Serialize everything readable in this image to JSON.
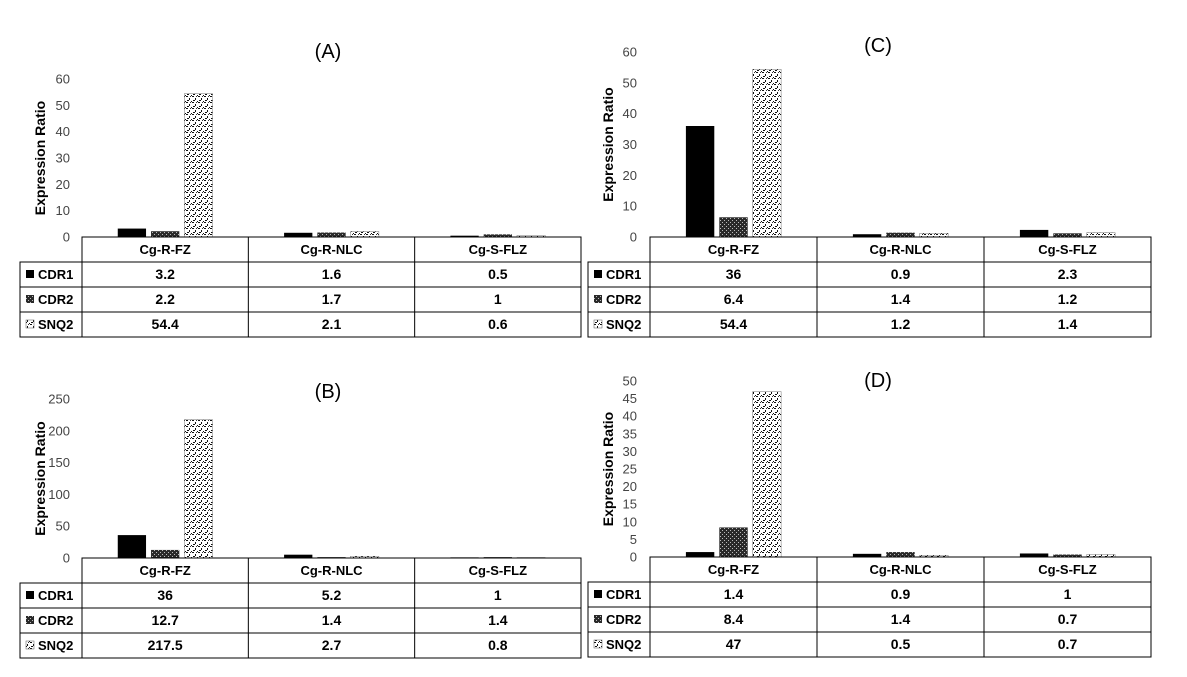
{
  "colors": {
    "CDR1": "#000000",
    "CDR2": "#333333",
    "SNQ2": "#eeeeee",
    "axis": "#444444",
    "grid": "#000000"
  },
  "chart_data": [
    {
      "type": "bar",
      "title": "(A)",
      "ylabel": "Expression Ratio",
      "ylim": [
        0,
        60
      ],
      "yticks": [
        0,
        10,
        20,
        30,
        40,
        50,
        60
      ],
      "categories": [
        "Cg-R-FZ",
        "Cg-R-NLC",
        "Cg-S-FLZ"
      ],
      "series": [
        {
          "name": "CDR1",
          "values": [
            3.2,
            1.6,
            0.5
          ],
          "labels": [
            "3.2",
            "1.6",
            "0.5"
          ]
        },
        {
          "name": "CDR2",
          "values": [
            2.2,
            1.7,
            1
          ],
          "labels": [
            "2.2",
            "1.7",
            "1"
          ]
        },
        {
          "name": "SNQ2",
          "values": [
            54.4,
            2.1,
            0.6
          ],
          "labels": [
            "54.4",
            "2.1",
            "0.6"
          ]
        }
      ]
    },
    {
      "type": "bar",
      "title": "(C)",
      "ylabel": "Expression Ratio",
      "ylim": [
        0,
        60
      ],
      "yticks": [
        0,
        10,
        20,
        30,
        40,
        50,
        60
      ],
      "categories": [
        "Cg-R-FZ",
        "Cg-R-NLC",
        "Cg-S-FLZ"
      ],
      "series": [
        {
          "name": "CDR1",
          "values": [
            36,
            0.9,
            2.3
          ],
          "labels": [
            "36",
            "0.9",
            "2.3"
          ]
        },
        {
          "name": "CDR2",
          "values": [
            6.4,
            1.4,
            1.2
          ],
          "labels": [
            "6.4",
            "1.4",
            "1.2"
          ]
        },
        {
          "name": "SNQ2",
          "values": [
            54.4,
            1.2,
            1.4
          ],
          "labels": [
            "54.4",
            "1.2",
            "1.4"
          ]
        }
      ]
    },
    {
      "type": "bar",
      "title": "(B)",
      "ylabel": "Expression Ratio",
      "ylim": [
        0,
        250
      ],
      "yticks": [
        0,
        50,
        100,
        150,
        200,
        250
      ],
      "categories": [
        "Cg-R-FZ",
        "Cg-R-NLC",
        "Cg-S-FLZ"
      ],
      "series": [
        {
          "name": "CDR1",
          "values": [
            36,
            5.2,
            1
          ],
          "labels": [
            "36",
            "5.2",
            "1"
          ]
        },
        {
          "name": "CDR2",
          "values": [
            12.7,
            1.4,
            1.4
          ],
          "labels": [
            "12.7",
            "1.4",
            "1.4"
          ]
        },
        {
          "name": "SNQ2",
          "values": [
            217.5,
            2.7,
            0.8
          ],
          "labels": [
            "217.5",
            "2.7",
            "0.8"
          ]
        }
      ]
    },
    {
      "type": "bar",
      "title": "(D)",
      "ylabel": "Expression Ratio",
      "ylim": [
        0,
        50
      ],
      "yticks": [
        0,
        5,
        10,
        15,
        20,
        25,
        30,
        35,
        40,
        45,
        50
      ],
      "categories": [
        "Cg-R-FZ",
        "Cg-R-NLC",
        "Cg-S-FLZ"
      ],
      "series": [
        {
          "name": "CDR1",
          "values": [
            1.4,
            0.9,
            1
          ],
          "labels": [
            "1.4",
            "0.9",
            "1"
          ]
        },
        {
          "name": "CDR2",
          "values": [
            8.4,
            1.4,
            0.7
          ],
          "labels": [
            "8.4",
            "1.4",
            "0.7"
          ]
        },
        {
          "name": "SNQ2",
          "values": [
            47,
            0.5,
            0.7
          ],
          "labels": [
            "47",
            "0.5",
            "0.7"
          ]
        }
      ]
    }
  ]
}
